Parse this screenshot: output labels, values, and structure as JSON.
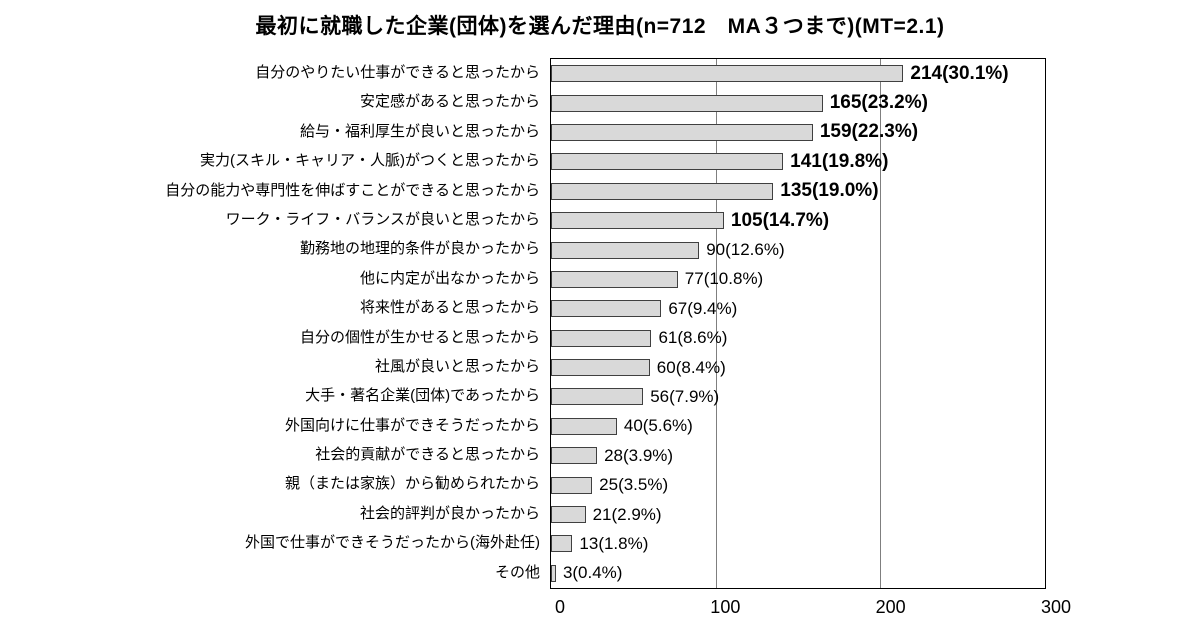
{
  "chart_data": {
    "type": "bar",
    "orientation": "horizontal",
    "title": "最初に就職した企業(団体)を選んだ理由(n=712　MA３つまで)(MT=2.1)",
    "categories": [
      "自分のやりたい仕事ができると思ったから",
      "安定感があると思ったから",
      "給与・福利厚生が良いと思ったから",
      "実力(スキル・キャリア・人脈)がつくと思ったから",
      "自分の能力や専門性を伸ばすことができると思ったから",
      "ワーク・ライフ・バランスが良いと思ったから",
      "勤務地の地理的条件が良かったから",
      "他に内定が出なかったから",
      "将来性があると思ったから",
      "自分の個性が生かせると思ったから",
      "社風が良いと思ったから",
      "大手・著名企業(団体)であったから",
      "外国向けに仕事ができそうだったから",
      "社会的貢献ができると思ったから",
      "親（または家族）から勧められたから",
      "社会的評判が良かったから",
      "外国で仕事ができそうだったから(海外赴任)",
      "その他"
    ],
    "values": [
      214,
      165,
      159,
      141,
      135,
      105,
      90,
      77,
      67,
      61,
      60,
      56,
      40,
      28,
      25,
      21,
      13,
      3
    ],
    "value_labels": [
      "214(30.1%)",
      "165(23.2%)",
      "159(22.3%)",
      "141(19.8%)",
      "135(19.0%)",
      "105(14.7%)",
      "90(12.6%)",
      "77(10.8%)",
      "67(9.4%)",
      "61(8.6%)",
      "60(8.4%)",
      "56(7.9%)",
      "40(5.6%)",
      "28(3.9%)",
      "25(3.5%)",
      "21(2.9%)",
      "13(1.8%)",
      "3(0.4%)"
    ],
    "value_bold": [
      true,
      true,
      true,
      true,
      true,
      true,
      false,
      false,
      false,
      false,
      false,
      false,
      false,
      false,
      false,
      false,
      false,
      false
    ],
    "xlabel": "",
    "ylabel": "",
    "xlim": [
      0,
      300
    ],
    "xticks": [
      "0",
      "100",
      "200",
      "300"
    ],
    "grid": "vertical",
    "legend": "none",
    "bar_fill_color": "#d9d9d9",
    "bar_border_color": "#404040",
    "gridline_color": "#7f7f7f"
  }
}
